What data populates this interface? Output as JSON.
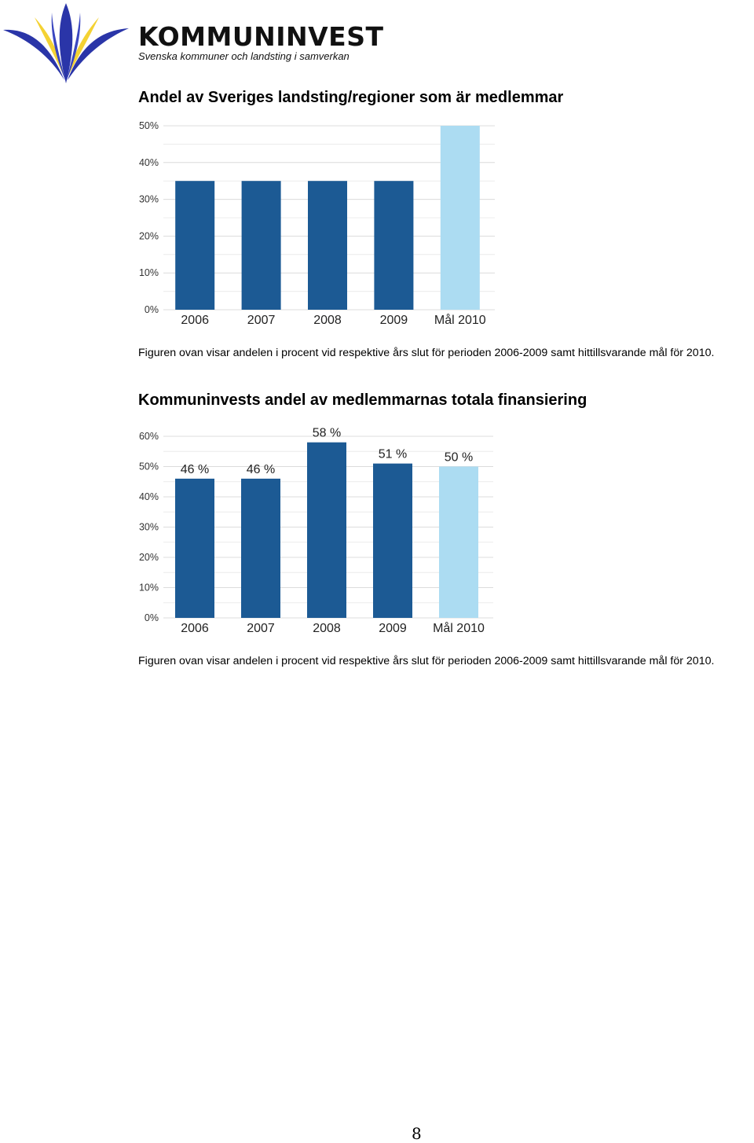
{
  "header": {
    "brand": "KOMMUNINVEST",
    "tagline": "Svenska kommuner och landsting i samverkan",
    "logo_colors": {
      "blue": "#2a35a8",
      "yellow": "#f4d233"
    }
  },
  "sections": [
    {
      "heading": "Andel av Sveriges landsting/regioner som är medlemmar",
      "caption": "Figuren ovan visar andelen i procent vid respektive års slut för perioden 2006-2009  samt hittillsvarande mål för 2010."
    },
    {
      "heading": "Kommuninvests andel av medlemmarnas totala finansiering",
      "caption": "Figuren ovan visar andelen i procent vid respektive års slut för perioden 2006-2009  samt hittillsvarande mål för 2010."
    }
  ],
  "chart_data": [
    {
      "type": "bar",
      "title": "Andel av Sveriges landsting/regioner som är medlemmar",
      "categories": [
        "2006",
        "2007",
        "2008",
        "2009",
        "Mål 2010"
      ],
      "values": [
        35,
        35,
        35,
        35,
        50
      ],
      "ylim": [
        0,
        50
      ],
      "yticks": [
        0,
        10,
        20,
        30,
        40,
        50
      ],
      "ytick_labels": [
        "0%",
        "10%",
        "20%",
        "30%",
        "40%",
        "50%"
      ],
      "data_labels": [],
      "colors": [
        "#1c5a94",
        "#1c5a94",
        "#1c5a94",
        "#1c5a94",
        "#acdcf2"
      ],
      "grid": true
    },
    {
      "type": "bar",
      "title": "Kommuninvests andel av medlemmarnas totala finansiering",
      "categories": [
        "2006",
        "2007",
        "2008",
        "2009",
        "Mål 2010"
      ],
      "values": [
        46,
        46,
        58,
        51,
        50
      ],
      "ylim": [
        0,
        60
      ],
      "yticks": [
        0,
        10,
        20,
        30,
        40,
        50,
        60
      ],
      "ytick_labels": [
        "0%",
        "10%",
        "20%",
        "30%",
        "40%",
        "50%",
        "60%"
      ],
      "data_labels": [
        "46 %",
        "46 %",
        "58 %",
        "51 %",
        "50 %"
      ],
      "colors": [
        "#1c5a94",
        "#1c5a94",
        "#1c5a94",
        "#1c5a94",
        "#acdcf2"
      ],
      "grid": true
    }
  ],
  "page_number": "8"
}
